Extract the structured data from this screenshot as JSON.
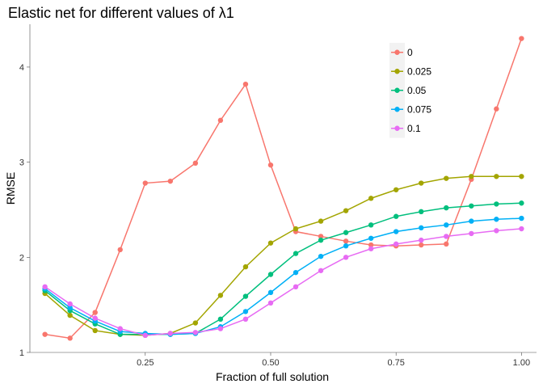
{
  "chart_data": {
    "type": "line",
    "title": "Elastic net for different values of λ1",
    "xlabel": "Fraction of full solution",
    "ylabel": "RMSE",
    "xlim": [
      0.02,
      1.03
    ],
    "ylim": [
      1,
      4.45
    ],
    "x_ticks": [
      0.25,
      0.5,
      0.75,
      1.0
    ],
    "x_tick_labels": [
      "0.25",
      "0.50",
      "0.75",
      "1.00"
    ],
    "y_ticks": [
      1,
      2,
      3,
      4
    ],
    "y_tick_labels": [
      "1",
      "2",
      "3",
      "4"
    ],
    "grid": false,
    "legend_position": "top-right",
    "x": [
      0.05,
      0.1,
      0.15,
      0.2,
      0.25,
      0.3,
      0.35,
      0.4,
      0.45,
      0.5,
      0.55,
      0.6,
      0.65,
      0.7,
      0.75,
      0.8,
      0.85,
      0.9,
      0.95,
      1.0
    ],
    "series": [
      {
        "name": "0",
        "color": "#F8766D",
        "values": [
          1.19,
          1.15,
          1.42,
          2.08,
          2.78,
          2.8,
          2.99,
          3.44,
          3.82,
          2.97,
          2.27,
          2.22,
          2.17,
          2.13,
          2.12,
          2.13,
          2.14,
          2.82,
          3.56,
          4.3
        ]
      },
      {
        "name": "0.025",
        "color": "#A3A500",
        "values": [
          1.62,
          1.39,
          1.23,
          1.19,
          1.18,
          1.2,
          1.31,
          1.6,
          1.9,
          2.15,
          2.3,
          2.38,
          2.49,
          2.62,
          2.71,
          2.78,
          2.83,
          2.85,
          2.85,
          2.85
        ]
      },
      {
        "name": "0.05",
        "color": "#00BF7D",
        "values": [
          1.65,
          1.44,
          1.3,
          1.19,
          1.19,
          1.19,
          1.2,
          1.35,
          1.59,
          1.82,
          2.04,
          2.18,
          2.26,
          2.34,
          2.43,
          2.48,
          2.52,
          2.54,
          2.56,
          2.57
        ]
      },
      {
        "name": "0.075",
        "color": "#00B0F6",
        "values": [
          1.67,
          1.47,
          1.33,
          1.22,
          1.2,
          1.19,
          1.2,
          1.27,
          1.43,
          1.63,
          1.84,
          2.01,
          2.12,
          2.2,
          2.27,
          2.31,
          2.34,
          2.38,
          2.4,
          2.41
        ]
      },
      {
        "name": "0.1",
        "color": "#E76BF3",
        "values": [
          1.69,
          1.51,
          1.36,
          1.25,
          1.18,
          1.2,
          1.21,
          1.25,
          1.35,
          1.52,
          1.69,
          1.86,
          2.0,
          2.09,
          2.14,
          2.18,
          2.22,
          2.25,
          2.28,
          2.3
        ]
      }
    ]
  }
}
